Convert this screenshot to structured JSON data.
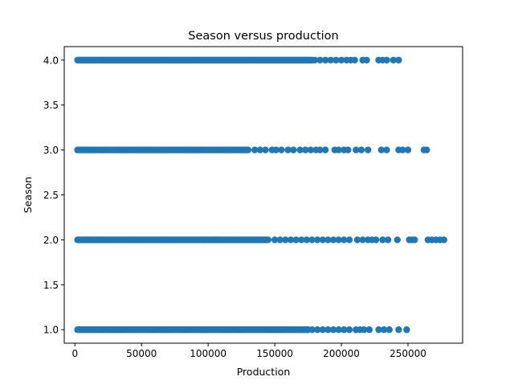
{
  "chart_data": {
    "type": "scatter",
    "title": "Season versus production",
    "xlabel": "Production",
    "ylabel": "Season",
    "xlim": [
      -8000,
      291000
    ],
    "ylim": [
      0.85,
      4.15
    ],
    "xticks": [
      0,
      50000,
      100000,
      150000,
      200000,
      250000
    ],
    "yticks": [
      1.0,
      1.5,
      2.0,
      2.5,
      3.0,
      3.5,
      4.0
    ],
    "xtick_labels": [
      "0",
      "50000",
      "100000",
      "150000",
      "200000",
      "250000"
    ],
    "ytick_labels": [
      "1.0",
      "1.5",
      "2.0",
      "2.5",
      "3.0",
      "3.5",
      "4.0"
    ],
    "grid": false,
    "legend": "none",
    "marker_color": "#1f77b4",
    "series": [
      {
        "y": 4,
        "dense_range": [
          2000,
          178000
        ],
        "x_sparse": [
          180000,
          184000,
          188000,
          192000,
          196000,
          200000,
          204000,
          207000,
          210000,
          216000,
          219000,
          228000,
          231000,
          234000,
          239000,
          243000
        ]
      },
      {
        "y": 3,
        "dense_range": [
          2000,
          130000
        ],
        "x_sparse": [
          135000,
          139000,
          143000,
          148000,
          151000,
          155000,
          160000,
          164000,
          169000,
          173000,
          177000,
          181000,
          184000,
          188000,
          195000,
          198000,
          202000,
          205000,
          211000,
          215000,
          220000,
          230000,
          234000,
          243000,
          246000,
          250000,
          262000,
          264000
        ]
      },
      {
        "y": 2,
        "dense_range": [
          2000,
          145000
        ],
        "x_sparse": [
          150000,
          154000,
          158000,
          162000,
          166000,
          170000,
          174000,
          178000,
          182000,
          186000,
          190000,
          194000,
          198000,
          202000,
          206000,
          212000,
          216000,
          220000,
          223000,
          226000,
          231000,
          235000,
          242000,
          251000,
          253000,
          255000,
          265000,
          268000,
          271000,
          274000,
          277000
        ]
      },
      {
        "y": 1,
        "dense_range": [
          2000,
          175000
        ],
        "x_sparse": [
          178000,
          182000,
          186000,
          190000,
          194000,
          198000,
          202000,
          206000,
          211000,
          214000,
          217000,
          221000,
          228000,
          232000,
          236000,
          243000,
          249000
        ]
      }
    ]
  }
}
